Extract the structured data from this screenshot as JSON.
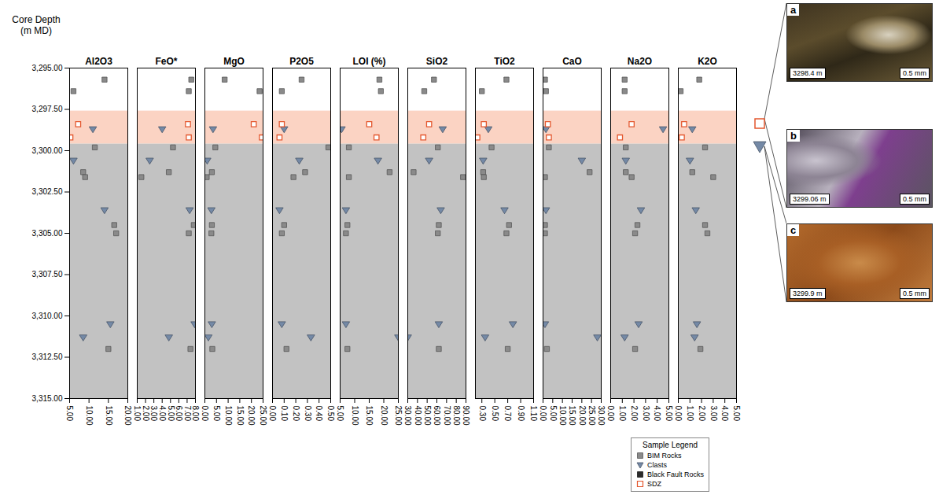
{
  "chart_data": {
    "type": "scatter",
    "y_label": "Core Depth\n(m MD)",
    "ylim": [
      3295,
      3315
    ],
    "yticks": [
      {
        "value": 3295,
        "label": "3,295.00"
      },
      {
        "value": 3297.5,
        "label": "3,297.50"
      },
      {
        "value": 3300,
        "label": "3,300.00"
      },
      {
        "value": 3302.5,
        "label": "3,302.50"
      },
      {
        "value": 3305,
        "label": "3,305.00"
      },
      {
        "value": 3307.5,
        "label": "3,307.50"
      },
      {
        "value": 3310,
        "label": "3,310.00"
      },
      {
        "value": 3312.5,
        "label": "3,312.50"
      },
      {
        "value": 3315,
        "label": "3,315.00"
      }
    ],
    "tick_labels": true,
    "zones": [
      {
        "from": 3297.6,
        "to": 3299.6,
        "color": "#fbd3c3"
      },
      {
        "from": 3299.6,
        "to": 3315,
        "color": "#c2c2c2"
      }
    ],
    "panels": [
      {
        "title": "Al2O3",
        "xlim": [
          5,
          20
        ],
        "xticks": [
          {
            "value": 5,
            "label": "5.00"
          },
          {
            "value": 10,
            "label": "10.00"
          },
          {
            "value": 15,
            "label": "15.00"
          },
          {
            "value": 20,
            "label": "20.00"
          }
        ]
      },
      {
        "title": "FeO*",
        "xlim": [
          1,
          8
        ],
        "xticks": [
          {
            "value": 1,
            "label": "1.00"
          },
          {
            "value": 2,
            "label": "2.00"
          },
          {
            "value": 3,
            "label": "3.00"
          },
          {
            "value": 4,
            "label": "4.00"
          },
          {
            "value": 5,
            "label": "5.00"
          },
          {
            "value": 6,
            "label": "6.00"
          },
          {
            "value": 7,
            "label": "7.00"
          },
          {
            "value": 8,
            "label": "8.00"
          }
        ]
      },
      {
        "title": "MgO",
        "xlim": [
          0,
          25
        ],
        "xticks": [
          {
            "value": 0,
            "label": "0.00"
          },
          {
            "value": 5,
            "label": "5.00"
          },
          {
            "value": 10,
            "label": "10.00"
          },
          {
            "value": 15,
            "label": "15.00"
          },
          {
            "value": 20,
            "label": "20.00"
          },
          {
            "value": 25,
            "label": "25.00"
          }
        ]
      },
      {
        "title": "P2O5",
        "xlim": [
          0,
          0.5
        ],
        "xticks": [
          {
            "value": 0,
            "label": "0.00"
          },
          {
            "value": 0.1,
            "label": "0.10"
          },
          {
            "value": 0.2,
            "label": "0.20"
          },
          {
            "value": 0.3,
            "label": "0.30"
          },
          {
            "value": 0.4,
            "label": "0.40"
          },
          {
            "value": 0.5,
            "label": "0.50"
          }
        ]
      },
      {
        "title": "LOI (%)",
        "xlim": [
          5,
          25
        ],
        "xticks": [
          {
            "value": 5,
            "label": "5.00"
          },
          {
            "value": 10,
            "label": "10.00"
          },
          {
            "value": 15,
            "label": "15.00"
          },
          {
            "value": 20,
            "label": "20.00"
          },
          {
            "value": 25,
            "label": "25.00"
          }
        ]
      },
      {
        "title": "SiO2",
        "xlim": [
          30,
          90
        ],
        "xticks": [
          {
            "value": 30,
            "label": "30.00"
          },
          {
            "value": 40,
            "label": "40.00"
          },
          {
            "value": 50,
            "label": "50.00"
          },
          {
            "value": 60,
            "label": "60.00"
          },
          {
            "value": 70,
            "label": "70.00"
          },
          {
            "value": 80,
            "label": "80.00"
          },
          {
            "value": 90,
            "label": "90.00"
          }
        ]
      },
      {
        "title": "TiO2",
        "xlim": [
          0.2,
          1.1
        ],
        "xticks": [
          {
            "value": 0.3,
            "label": "0.30"
          },
          {
            "value": 0.5,
            "label": "0.50"
          },
          {
            "value": 0.7,
            "label": "0.70"
          },
          {
            "value": 0.9,
            "label": "0.90"
          },
          {
            "value": 1.1,
            "label": "1.10"
          }
        ]
      },
      {
        "title": "CaO",
        "xlim": [
          0,
          30
        ],
        "xticks": [
          {
            "value": 0,
            "label": "0.00"
          },
          {
            "value": 5,
            "label": "5.00"
          },
          {
            "value": 10,
            "label": "10.00"
          },
          {
            "value": 15,
            "label": "15.00"
          },
          {
            "value": 20,
            "label": "20.00"
          },
          {
            "value": 25,
            "label": "25.00"
          },
          {
            "value": 30,
            "label": "30.00"
          }
        ]
      },
      {
        "title": "Na2O",
        "xlim": [
          0,
          5
        ],
        "xticks": [
          {
            "value": 0,
            "label": "0.00"
          },
          {
            "value": 1,
            "label": "1.00"
          },
          {
            "value": 2,
            "label": "2.00"
          },
          {
            "value": 3,
            "label": "3.00"
          },
          {
            "value": 4,
            "label": "4.00"
          },
          {
            "value": 5,
            "label": "5.00"
          }
        ]
      },
      {
        "title": "K2O",
        "xlim": [
          0,
          5
        ],
        "xticks": [
          {
            "value": 0,
            "label": "0.00"
          },
          {
            "value": 1,
            "label": "1.00"
          },
          {
            "value": 2,
            "label": "2.00"
          },
          {
            "value": 3,
            "label": "3.00"
          },
          {
            "value": 4,
            "label": "4.00"
          },
          {
            "value": 5,
            "label": "5.00"
          }
        ]
      }
    ],
    "series": [
      {
        "name": "BIM Rocks",
        "marker": "square",
        "color": "#8a8a8a",
        "depths": [
          3295.7,
          3296.4,
          3299.8,
          3301.3,
          3301.6,
          3304.5,
          3305,
          3312
        ],
        "values": {
          "Al2O3": [
            14,
            6,
            11.5,
            8.5,
            9,
            16.5,
            17,
            15
          ],
          "FeO*": [
            7.5,
            7.2,
            5.3,
            4.8,
            1.5,
            7.8,
            7.2,
            7.4
          ],
          "MgO": [
            8.5,
            23.5,
            4.5,
            3,
            0.8,
            3,
            2.8,
            3.2
          ],
          "P2O5": [
            0.25,
            0.08,
            0.48,
            0.28,
            0.18,
            0.1,
            0.08,
            0.12
          ],
          "LOI (%)": [
            18.5,
            19,
            8,
            22,
            8,
            7.5,
            7,
            7.5
          ],
          "SiO2": [
            57,
            47,
            61,
            36,
            87,
            62,
            61,
            62
          ],
          "TiO2": [
            0.68,
            0.3,
            0.45,
            0.32,
            0.33,
            0.72,
            0.68,
            0.7
          ],
          "CaO": [
            1,
            1.5,
            3,
            24,
            1,
            1,
            1,
            2
          ],
          "Na2O": [
            1.2,
            1.2,
            1.3,
            1.3,
            1.8,
            2.3,
            2.1,
            2.1
          ],
          "K2O": [
            1.8,
            0.2,
            2.3,
            1.2,
            3,
            2.3,
            2.5,
            1.9
          ]
        }
      },
      {
        "name": "Clasts",
        "marker": "triangle-down",
        "color": "#7489a6",
        "depths": [
          3298.7,
          3300.6,
          3303.6,
          3310.5,
          3311.3
        ],
        "values": {
          "Al2O3": [
            11,
            6,
            14,
            15.5,
            8.5
          ],
          "FeO*": [
            4,
            2.5,
            7.3,
            7.9,
            4.8
          ],
          "MgO": [
            3.5,
            1,
            2.8,
            3,
            1.5
          ],
          "P2O5": [
            0.1,
            0.23,
            0.06,
            0.08,
            0.33
          ],
          "LOI (%)": [
            5.5,
            18,
            7,
            7,
            25
          ],
          "SiO2": [
            66,
            52,
            64,
            62,
            30
          ],
          "TiO2": [
            0.4,
            0.32,
            0.65,
            0.78,
            0.35
          ],
          "CaO": [
            1.5,
            20,
            1.5,
            1,
            28
          ],
          "Na2O": [
            4.5,
            1.3,
            2.6,
            2.4,
            1.2
          ],
          "K2O": [
            1.2,
            1,
            1.5,
            1.6,
            1.4
          ]
        }
      },
      {
        "name": "Black Fault Rocks",
        "marker": "square",
        "color": "#2b2b2b",
        "depths": [],
        "values": {
          "Al2O3": [],
          "FeO*": [],
          "MgO": [],
          "P2O5": [],
          "LOI (%)": [],
          "SiO2": [],
          "TiO2": [],
          "CaO": [],
          "Na2O": [],
          "K2O": []
        }
      },
      {
        "name": "SDZ",
        "marker": "square-open",
        "color": "#e4572e",
        "depths": [
          3298.4,
          3299.2
        ],
        "values": {
          "Al2O3": [
            7.2,
            5.2
          ],
          "FeO*": [
            7.1,
            7.2
          ],
          "MgO": [
            21,
            24.5
          ],
          "P2O5": [
            0.08,
            0.06
          ],
          "LOI (%)": [
            15,
            17.5
          ],
          "SiO2": [
            52,
            46
          ],
          "TiO2": [
            0.33,
            0.23
          ],
          "CaO": [
            2.5,
            3
          ],
          "Na2O": [
            1.8,
            0.8
          ],
          "K2O": [
            0.5,
            0.3
          ]
        }
      }
    ],
    "legend": "bottom right",
    "legend_title": "Sample Legend",
    "micrographs": [
      {
        "letter": "a",
        "depth": "3298.4 m",
        "scale": "0.5 mm"
      },
      {
        "letter": "b",
        "depth": "3299.06 m",
        "scale": "0.5 mm"
      },
      {
        "letter": "c",
        "depth": "3299.9 m",
        "scale": "0.5 mm"
      }
    ]
  }
}
